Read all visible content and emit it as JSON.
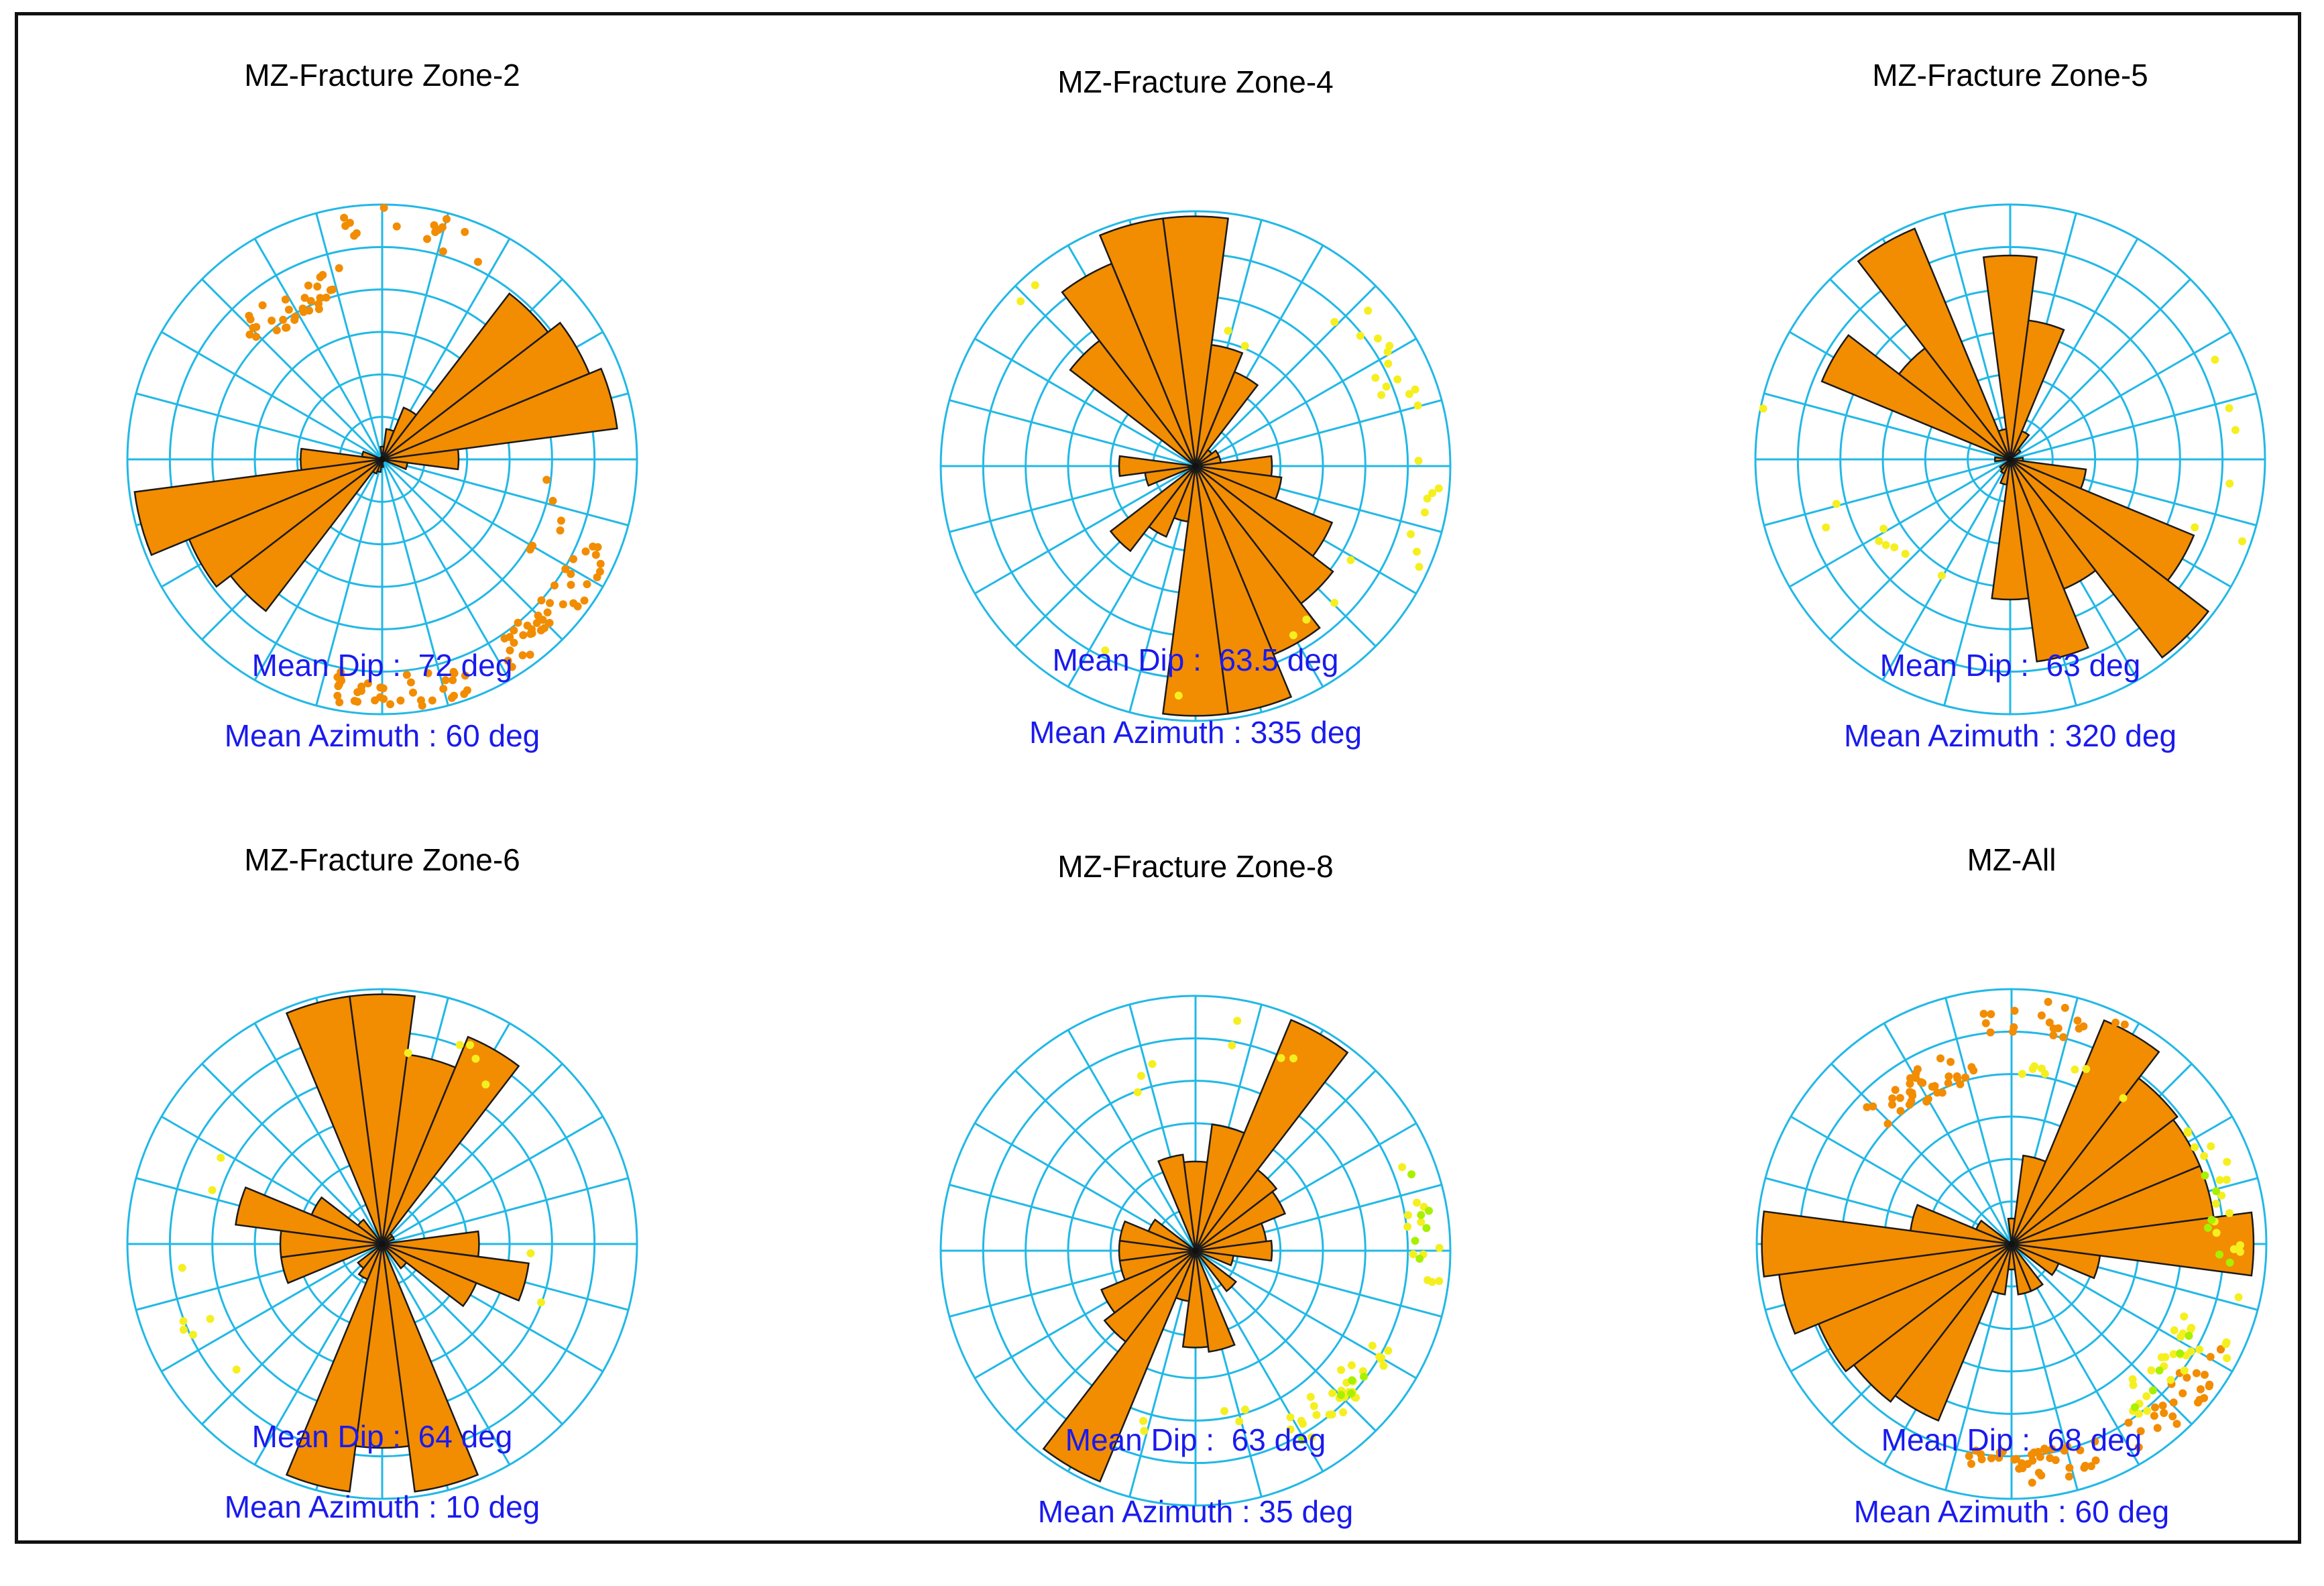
{
  "colors": {
    "grid": "#22b8e6",
    "petal": "#f28c00",
    "petal_stroke": "#1a1a1a",
    "stat_text": "#1a1aee"
  },
  "chart_data": [
    {
      "type": "rose",
      "title": "MZ-Fracture Zone-2",
      "mean_dip_label": "Mean Dip :  72 deg",
      "mean_azimuth_label": "Mean Azimuth : 60 deg",
      "bin_width_deg": 15,
      "rose": [
        [
          0,
          0.05
        ],
        [
          15,
          0.12
        ],
        [
          30,
          0.22
        ],
        [
          45,
          0.82
        ],
        [
          60,
          0.88
        ],
        [
          75,
          0.93
        ],
        [
          90,
          0.3
        ],
        [
          105,
          0.1
        ],
        [
          180,
          0.03
        ],
        [
          195,
          0.05
        ],
        [
          210,
          0.06
        ],
        [
          225,
          0.75
        ],
        [
          240,
          0.82
        ],
        [
          255,
          0.98
        ],
        [
          270,
          0.32
        ],
        [
          285,
          0.08
        ]
      ],
      "points": [
        {
          "color": "#f28c00",
          "clusters": [
            [
              330,
              0.7,
              32
            ],
            [
              8,
              0.92,
              16
            ],
            [
              130,
              0.9,
              42
            ],
            [
              175,
              0.92,
              38
            ],
            [
              105,
              0.72,
              6
            ]
          ]
        }
      ]
    },
    {
      "type": "rose",
      "title": "MZ-Fracture Zone-4",
      "mean_dip_label": "Mean Dip :  63.5 deg",
      "mean_azimuth_label": "Mean Azimuth : 335 deg",
      "bin_width_deg": 15,
      "rose": [
        [
          0,
          0.98
        ],
        [
          15,
          0.48
        ],
        [
          30,
          0.4
        ],
        [
          45,
          0.08
        ],
        [
          60,
          0.1
        ],
        [
          75,
          0.1
        ],
        [
          90,
          0.3
        ],
        [
          105,
          0.34
        ],
        [
          120,
          0.58
        ],
        [
          135,
          0.68
        ],
        [
          150,
          0.8
        ],
        [
          165,
          0.98
        ],
        [
          180,
          0.98
        ],
        [
          195,
          0.22
        ],
        [
          210,
          0.3
        ],
        [
          225,
          0.42
        ],
        [
          255,
          0.2
        ],
        [
          270,
          0.3
        ],
        [
          315,
          0.62
        ],
        [
          330,
          0.86
        ],
        [
          345,
          0.98
        ]
      ],
      "points": [
        {
          "color": "#f5ef20",
          "clusters": [
            [
              60,
              0.85,
              14
            ],
            [
              100,
              0.92,
              8
            ],
            [
              135,
              0.7,
              4
            ],
            [
              330,
              0.9,
              2
            ],
            [
              200,
              0.85,
              2
            ],
            [
              20,
              0.55,
              2
            ]
          ]
        }
      ]
    },
    {
      "type": "rose",
      "title": "MZ-Fracture Zone-5",
      "mean_dip_label": "Mean Dip :  63 deg",
      "mean_azimuth_label": "Mean Azimuth : 320 deg",
      "bin_width_deg": 15,
      "rose": [
        [
          0,
          0.8
        ],
        [
          15,
          0.55
        ],
        [
          30,
          0.12
        ],
        [
          45,
          0.05
        ],
        [
          90,
          0.05
        ],
        [
          105,
          0.3
        ],
        [
          120,
          0.78
        ],
        [
          135,
          0.98
        ],
        [
          150,
          0.55
        ],
        [
          165,
          0.8
        ],
        [
          180,
          0.55
        ],
        [
          195,
          0.1
        ],
        [
          210,
          0.06
        ],
        [
          225,
          0.05
        ],
        [
          270,
          0.06
        ],
        [
          300,
          0.8
        ],
        [
          315,
          0.55
        ],
        [
          330,
          0.98
        ],
        [
          345,
          0.12
        ]
      ],
      "points": [
        {
          "color": "#f5ef20",
          "clusters": [
            [
              225,
              0.55,
              6
            ],
            [
              80,
              0.95,
              3
            ],
            [
              100,
              0.9,
              2
            ],
            [
              250,
              0.75,
              2
            ],
            [
              270,
              0.95,
              1
            ],
            [
              95,
              0.75,
              1
            ]
          ]
        }
      ]
    },
    {
      "type": "rose",
      "title": "MZ-Fracture Zone-6",
      "mean_dip_label": "Mean Dip :  64 deg",
      "mean_azimuth_label": "Mean Azimuth : 10 deg",
      "bin_width_deg": 15,
      "rose": [
        [
          0,
          0.98
        ],
        [
          15,
          0.75
        ],
        [
          30,
          0.88
        ],
        [
          45,
          0.05
        ],
        [
          60,
          0.05
        ],
        [
          90,
          0.38
        ],
        [
          105,
          0.58
        ],
        [
          120,
          0.4
        ],
        [
          135,
          0.12
        ],
        [
          165,
          0.98
        ],
        [
          180,
          0.8
        ],
        [
          195,
          0.98
        ],
        [
          210,
          0.15
        ],
        [
          225,
          0.12
        ],
        [
          255,
          0.4
        ],
        [
          270,
          0.4
        ],
        [
          285,
          0.58
        ],
        [
          300,
          0.3
        ],
        [
          315,
          0.12
        ],
        [
          345,
          0.98
        ]
      ],
      "points": [
        {
          "color": "#f5ef20",
          "clusters": [
            [
              15,
              0.8,
              5
            ],
            [
              255,
              0.85,
              4
            ],
            [
              290,
              0.65,
              2
            ],
            [
              110,
              0.65,
              2
            ],
            [
              230,
              0.75,
              2
            ]
          ]
        }
      ]
    },
    {
      "type": "rose",
      "title": "MZ-Fracture Zone-8",
      "mean_dip_label": "Mean Dip :  63 deg",
      "mean_azimuth_label": "Mean Azimuth : 35 deg",
      "bin_width_deg": 15,
      "rose": [
        [
          0,
          0.35
        ],
        [
          15,
          0.5
        ],
        [
          30,
          0.98
        ],
        [
          45,
          0.4
        ],
        [
          60,
          0.38
        ],
        [
          75,
          0.28
        ],
        [
          90,
          0.3
        ],
        [
          105,
          0.15
        ],
        [
          135,
          0.2
        ],
        [
          165,
          0.4
        ],
        [
          180,
          0.38
        ],
        [
          195,
          0.2
        ],
        [
          210,
          0.98
        ],
        [
          225,
          0.45
        ],
        [
          240,
          0.4
        ],
        [
          255,
          0.3
        ],
        [
          270,
          0.3
        ],
        [
          285,
          0.3
        ],
        [
          300,
          0.2
        ],
        [
          345,
          0.38
        ]
      ],
      "points": [
        {
          "color": "#f5ef20",
          "clusters": [
            [
              135,
              0.8,
              30
            ],
            [
              80,
              0.9,
              12
            ],
            [
              20,
              0.85,
              4
            ],
            [
              330,
              0.7,
              3
            ],
            [
              200,
              0.7,
              2
            ],
            [
              160,
              0.65,
              3
            ]
          ]
        },
        {
          "color": "#a8f000",
          "clusters": [
            [
              85,
              0.92,
              6
            ],
            [
              140,
              0.85,
              5
            ]
          ]
        }
      ]
    },
    {
      "type": "rose",
      "title": "MZ-All",
      "mean_dip_label": "Mean Dip :  68 deg",
      "mean_azimuth_label": "Mean Azimuth : 60 deg",
      "bin_width_deg": 15,
      "rose": [
        [
          0,
          0.1
        ],
        [
          15,
          0.35
        ],
        [
          30,
          0.95
        ],
        [
          45,
          0.82
        ],
        [
          60,
          0.8
        ],
        [
          75,
          0.8
        ],
        [
          90,
          0.95
        ],
        [
          105,
          0.35
        ],
        [
          120,
          0.2
        ],
        [
          150,
          0.2
        ],
        [
          165,
          0.2
        ],
        [
          180,
          0.1
        ],
        [
          195,
          0.2
        ],
        [
          210,
          0.75
        ],
        [
          225,
          0.78
        ],
        [
          240,
          0.82
        ],
        [
          255,
          0.92
        ],
        [
          270,
          0.98
        ],
        [
          285,
          0.4
        ],
        [
          300,
          0.15
        ]
      ],
      "points": [
        {
          "color": "#f28c00",
          "clusters": [
            [
              330,
              0.72,
              36
            ],
            [
              10,
              0.9,
              22
            ],
            [
              175,
              0.88,
              38
            ],
            [
              130,
              0.9,
              26
            ]
          ]
        },
        {
          "color": "#f5ef20",
          "clusters": [
            [
              130,
              0.78,
              24
            ],
            [
              75,
              0.85,
              14
            ],
            [
              20,
              0.7,
              8
            ],
            [
              100,
              0.92,
              6
            ]
          ]
        },
        {
          "color": "#a8f000",
          "clusters": [
            [
              80,
              0.8,
              6
            ],
            [
              135,
              0.82,
              5
            ]
          ]
        }
      ]
    }
  ]
}
